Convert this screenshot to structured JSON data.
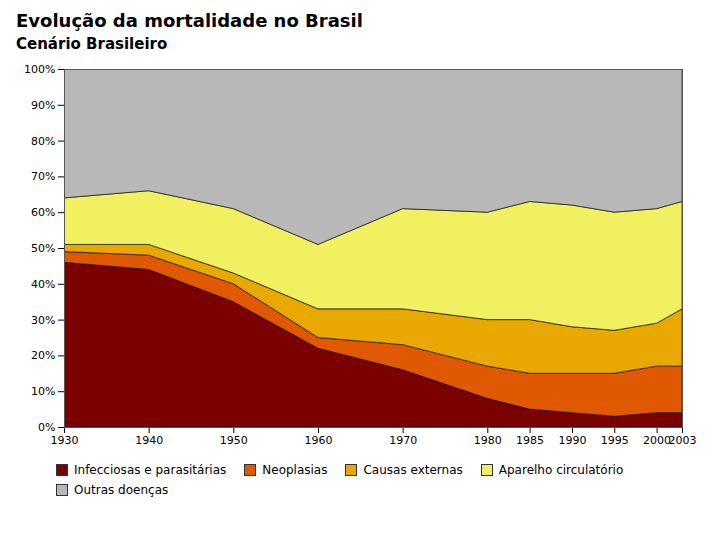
{
  "chart_data": {
    "type": "area",
    "title": "Evolução da mortalidade no Brasil",
    "subtitle": "Cenário Brasileiro",
    "x": [
      1930,
      1940,
      1950,
      1960,
      1970,
      1980,
      1985,
      1990,
      1995,
      2000,
      2003
    ],
    "series": [
      {
        "name": "Infecciosas e parasitárias",
        "color": "#7b0000",
        "values": [
          46,
          44,
          35,
          22,
          16,
          8,
          5,
          4,
          3,
          4,
          4
        ]
      },
      {
        "name": "Neoplasias",
        "color": "#e05800",
        "values": [
          3,
          4,
          5,
          3,
          7,
          9,
          10,
          11,
          12,
          13,
          13
        ]
      },
      {
        "name": "Causas externas",
        "color": "#e8a800",
        "values": [
          2,
          3,
          3,
          8,
          10,
          13,
          15,
          13,
          12,
          12,
          16
        ]
      },
      {
        "name": "Aparelho circulatório",
        "color": "#f0f060",
        "values": [
          13,
          15,
          18,
          18,
          28,
          30,
          33,
          34,
          33,
          32,
          30
        ]
      },
      {
        "name": "Outras doenças",
        "color": "#b8b8b8",
        "values": [
          36,
          34,
          39,
          49,
          39,
          40,
          37,
          38,
          40,
          39,
          37
        ]
      }
    ],
    "stacked": true,
    "xlim": [
      1930,
      2003
    ],
    "xticks": [
      1930,
      1940,
      1950,
      1960,
      1970,
      1980,
      1985,
      1990,
      1995,
      2000,
      2003
    ],
    "ylim": [
      0,
      100
    ],
    "yticks": [
      {
        "value": 0,
        "label": "0%"
      },
      {
        "value": 10,
        "label": "10%"
      },
      {
        "value": 20,
        "label": "20%"
      },
      {
        "value": 30,
        "label": "30%"
      },
      {
        "value": 40,
        "label": "40%"
      },
      {
        "value": 50,
        "label": "50%"
      },
      {
        "value": 60,
        "label": "60%"
      },
      {
        "value": 70,
        "label": "70%"
      },
      {
        "value": 80,
        "label": "80%"
      },
      {
        "value": 90,
        "label": "90%"
      },
      {
        "value": 100,
        "label": "100%"
      }
    ],
    "grid": "y",
    "legend": "bottom"
  }
}
